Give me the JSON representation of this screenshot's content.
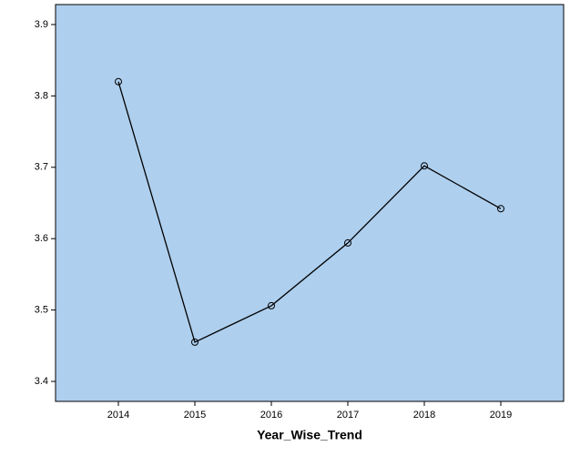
{
  "chart_data": {
    "type": "line",
    "xlabel": "Year_Wise_Trend",
    "categories": [
      "2014",
      "2015",
      "2016",
      "2017",
      "2018",
      "2019"
    ],
    "values": [
      3.82,
      3.455,
      3.506,
      3.594,
      3.702,
      3.642
    ],
    "color": "#000000",
    "background": "#aecfee",
    "ylim": [
      3.372,
      3.928
    ],
    "yticks": [
      3.4,
      3.5,
      3.6,
      3.7,
      3.8,
      3.9
    ]
  }
}
